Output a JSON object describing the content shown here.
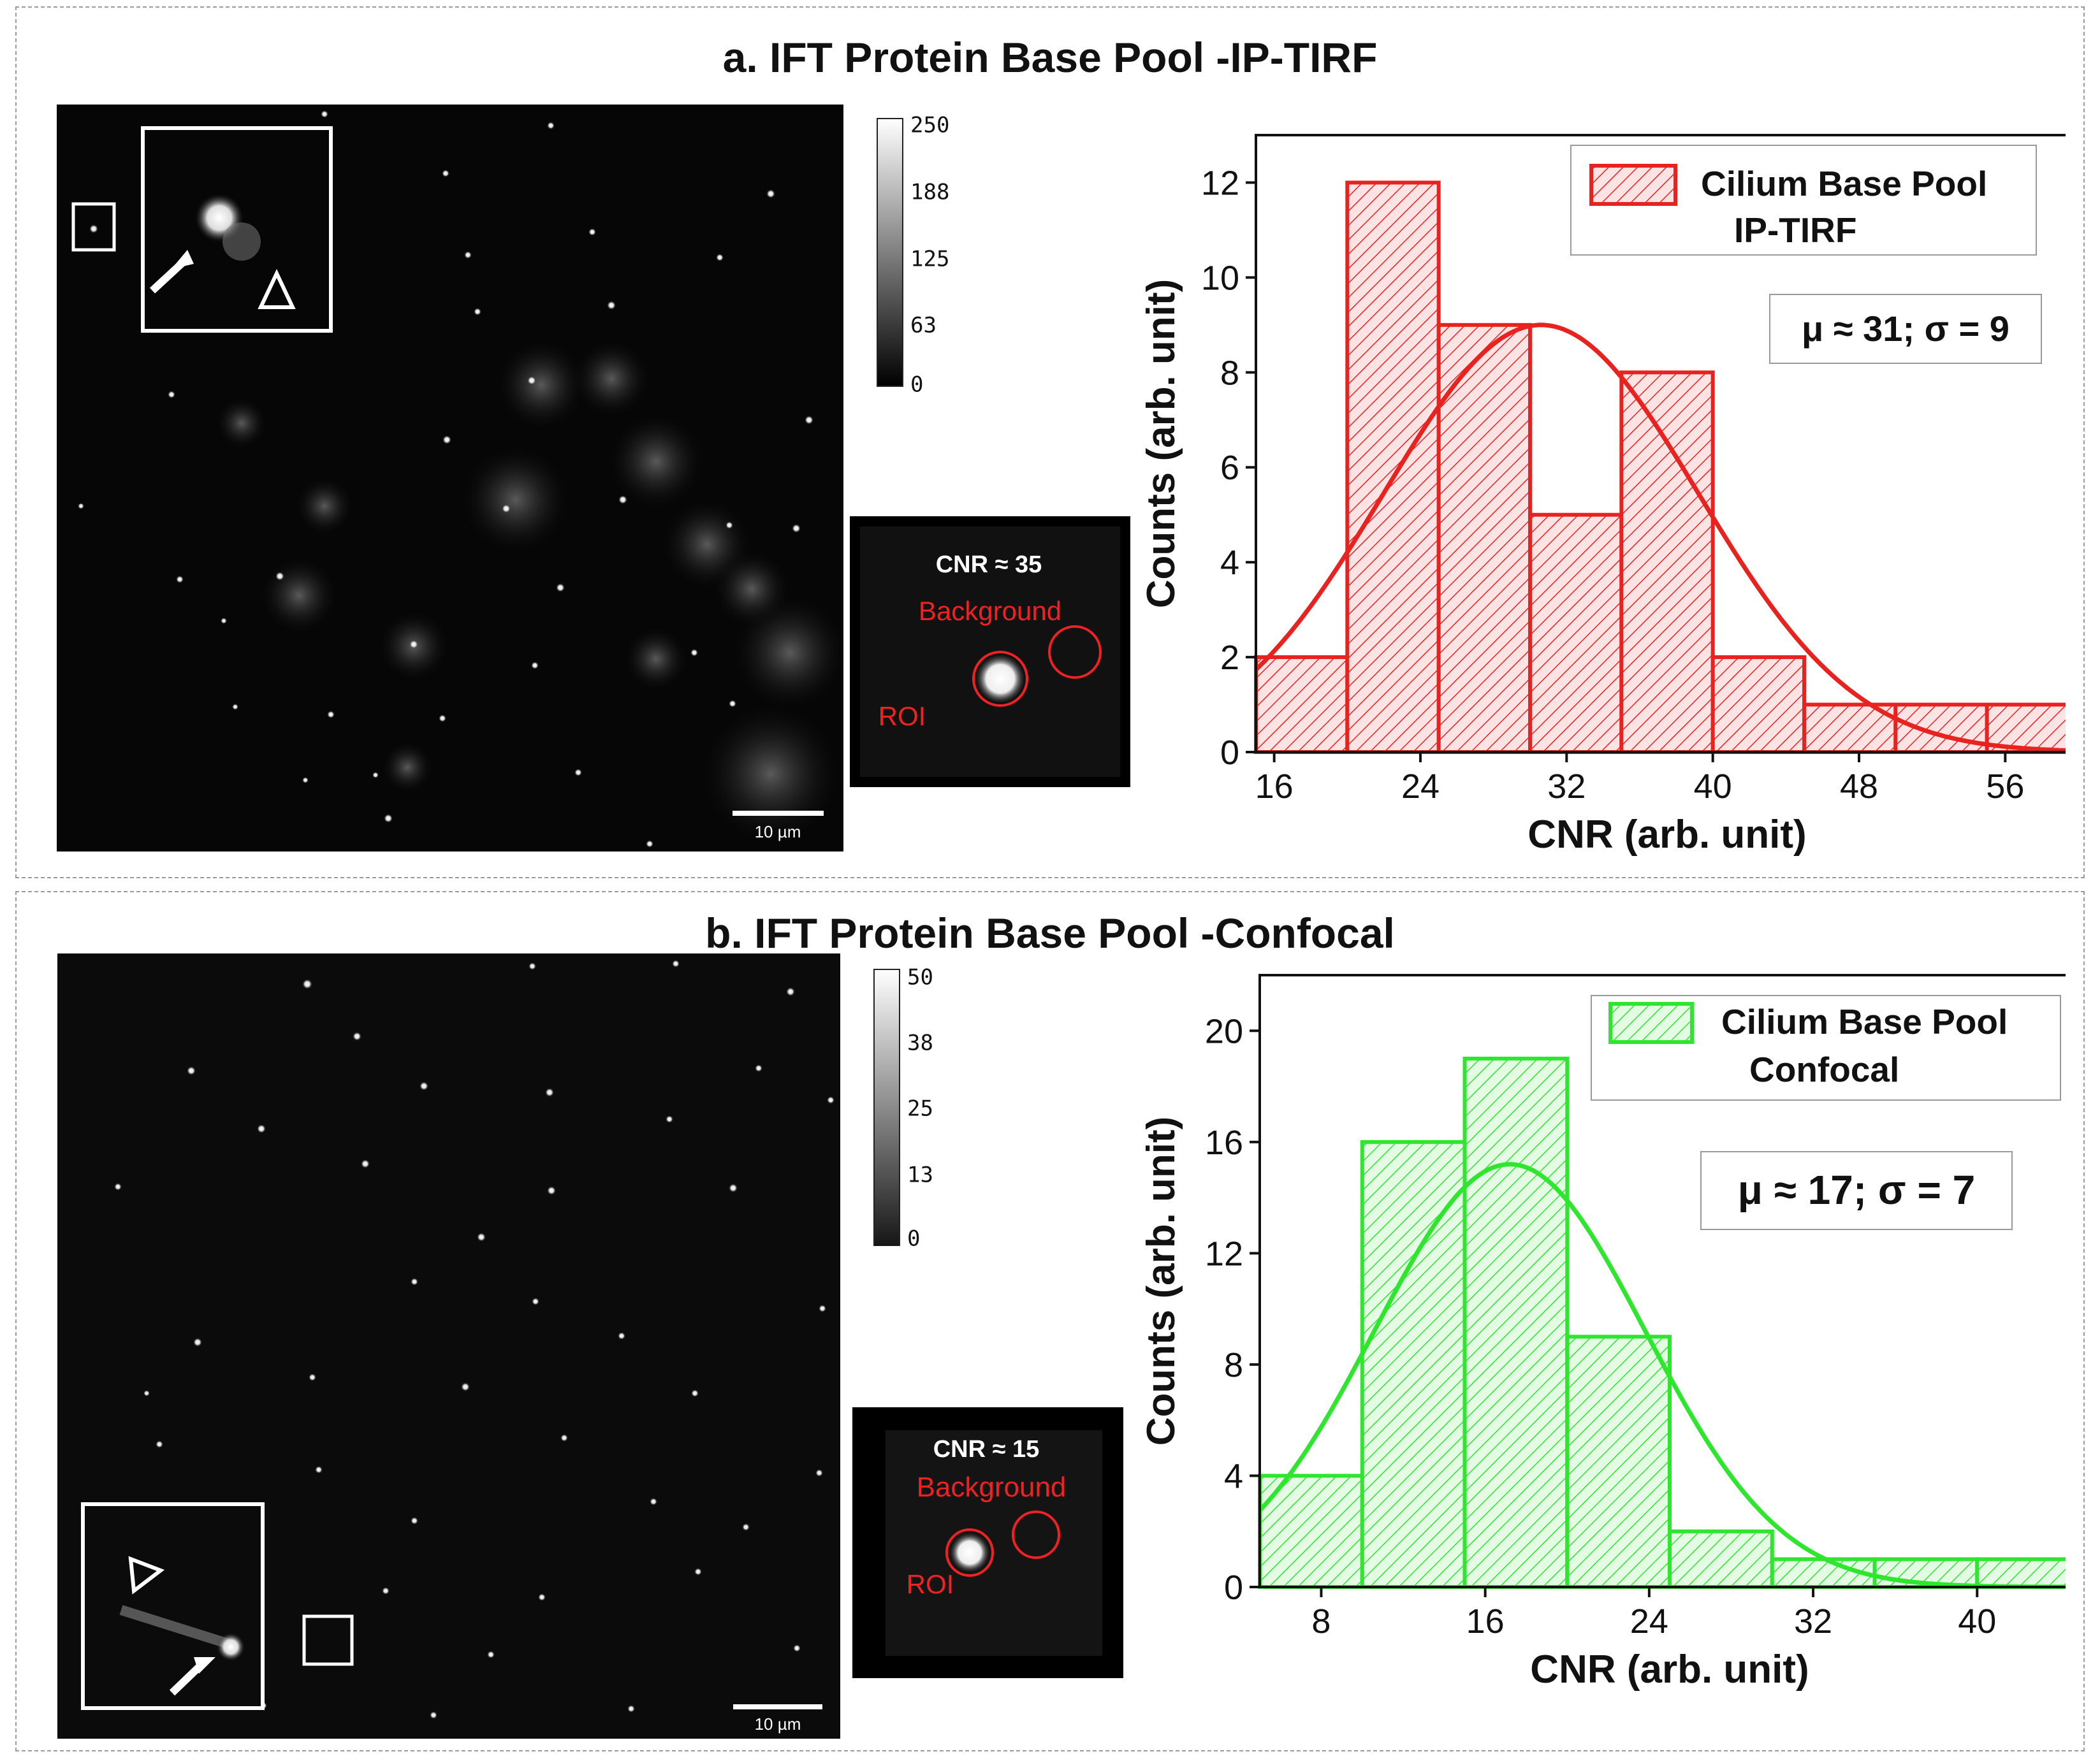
{
  "panels": [
    {
      "title": "a. IFT Protein Base Pool -IP-TIRF",
      "colorbar_ticks": [
        "250",
        "188",
        "125",
        "63",
        "0"
      ],
      "scale_bar": "10 µm",
      "cnr_inset": {
        "cnr_label": "CNR  ≈ 35",
        "background_label": "Background",
        "roi_label": "ROI"
      },
      "stats_box": "μ ≈ 31; σ = 9"
    },
    {
      "title": "b. IFT Protein Base Pool -Confocal",
      "colorbar_ticks": [
        "50",
        "38",
        "25",
        "13",
        "0"
      ],
      "scale_bar": "10 µm",
      "cnr_inset": {
        "cnr_label": "CNR  ≈ 15",
        "background_label": "Background",
        "roi_label": "ROI"
      },
      "stats_box": "μ ≈ 17; σ = 7"
    }
  ],
  "chart_data": [
    {
      "type": "bar",
      "title": "a. IFT Protein Base Pool -IP-TIRF",
      "xlabel": "CNR (arb. unit)",
      "ylabel": "Counts (arb. unit)",
      "xlim": [
        15,
        60
      ],
      "ylim": [
        0,
        13
      ],
      "xticks": [
        16,
        24,
        32,
        40,
        48,
        56
      ],
      "yticks": [
        0,
        2,
        4,
        6,
        8,
        10,
        12
      ],
      "bins": [
        [
          15,
          20
        ],
        [
          20,
          25
        ],
        [
          25,
          30
        ],
        [
          30,
          35
        ],
        [
          35,
          40
        ],
        [
          40,
          45
        ],
        [
          45,
          50
        ],
        [
          50,
          55
        ],
        [
          55,
          60
        ]
      ],
      "values": [
        2,
        12,
        9,
        5,
        8,
        2,
        1,
        1,
        1
      ],
      "fit": {
        "type": "gaussian",
        "mu": 30.6,
        "sigma": 8.6,
        "peak": 9.0
      },
      "legend": [
        "Cilium Base Pool",
        "IP-TIRF"
      ],
      "color": "#e8231f"
    },
    {
      "type": "bar",
      "title": "b. IFT Protein Base Pool -Confocal",
      "xlabel": "CNR (arb. unit)",
      "ylabel": "Counts (arb. unit)",
      "xlim": [
        5,
        45
      ],
      "ylim": [
        0,
        22
      ],
      "xticks": [
        8,
        16,
        24,
        32,
        40
      ],
      "yticks": [
        0,
        4,
        8,
        12,
        16,
        20
      ],
      "bins": [
        [
          5,
          10
        ],
        [
          10,
          15
        ],
        [
          15,
          20
        ],
        [
          20,
          25
        ],
        [
          25,
          30
        ],
        [
          30,
          35
        ],
        [
          35,
          40
        ],
        [
          40,
          45
        ]
      ],
      "values": [
        4,
        16,
        19,
        9,
        2,
        1,
        1,
        1
      ],
      "fit": {
        "type": "gaussian",
        "mu": 17.2,
        "sigma": 6.6,
        "peak": 15.2
      },
      "legend": [
        "Cilium Base Pool",
        "Confocal"
      ],
      "color": "#2ee62e"
    }
  ]
}
